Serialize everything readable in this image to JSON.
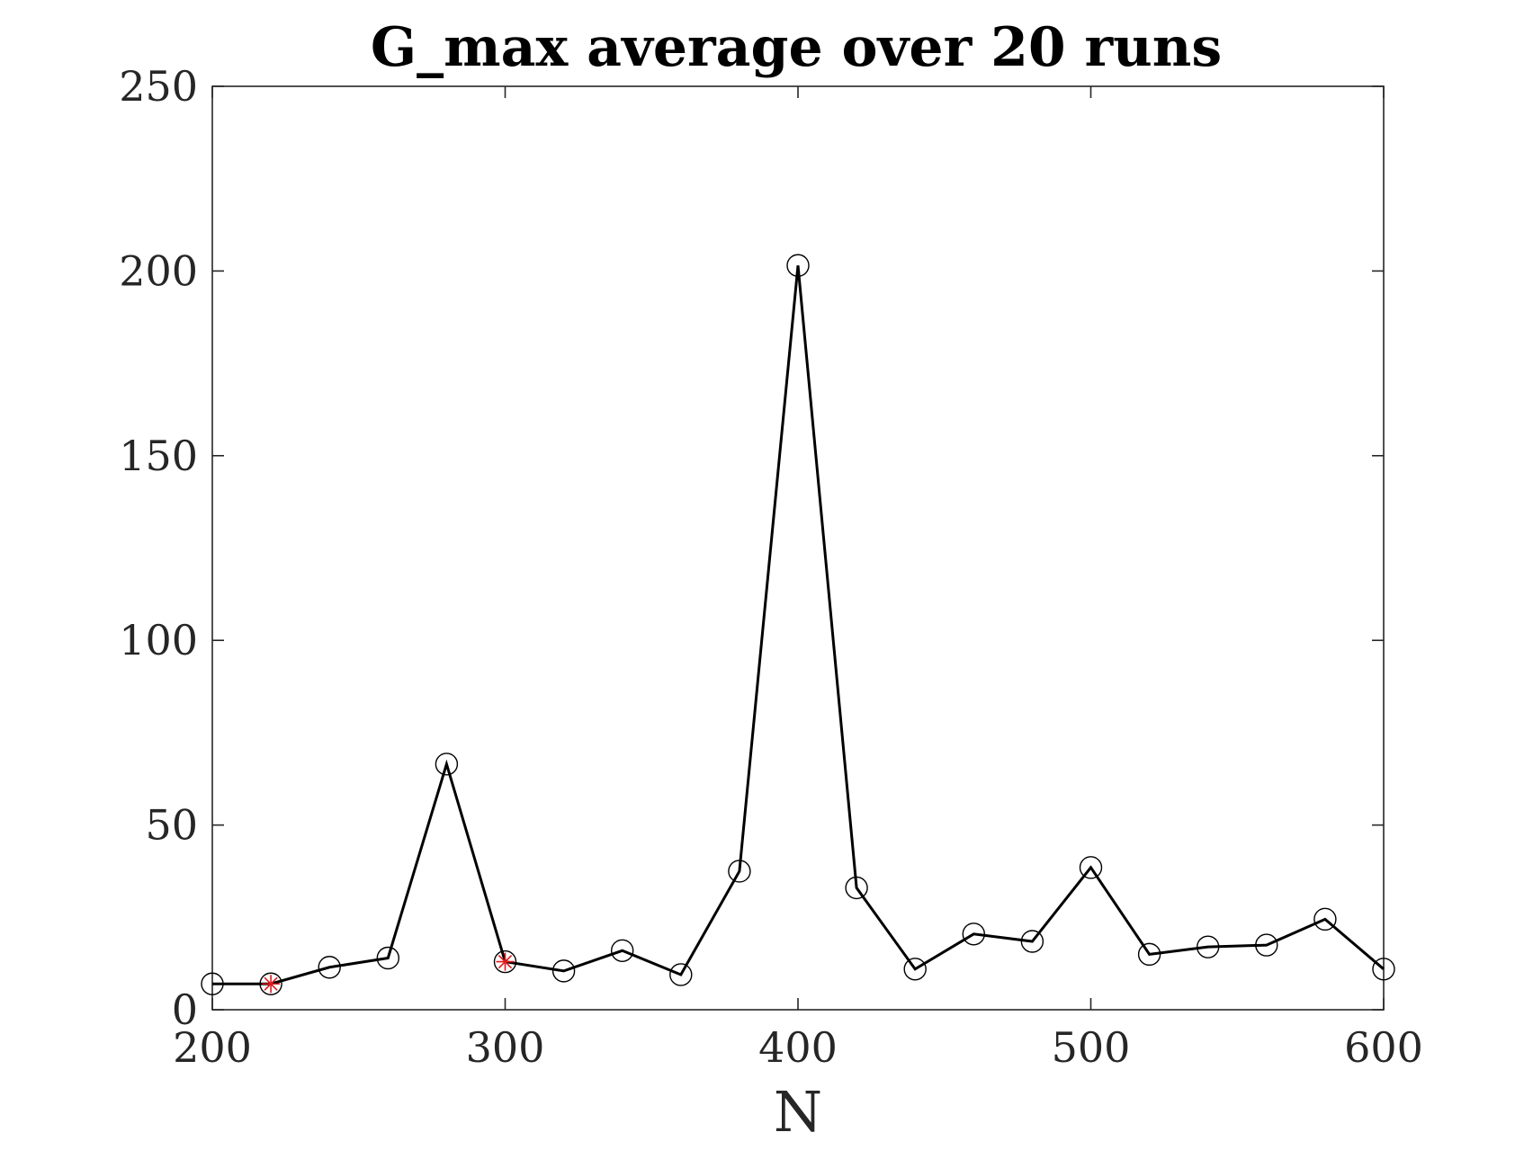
{
  "chart_data": {
    "type": "line",
    "title": "G_max average over 20 runs",
    "xlabel": "N",
    "ylabel": "",
    "xlim": [
      200,
      600
    ],
    "ylim": [
      0,
      250
    ],
    "xticks": [
      200,
      300,
      400,
      500,
      600
    ],
    "yticks": [
      0,
      50,
      100,
      150,
      200,
      250
    ],
    "x_tick_labels": [
      "200",
      "300",
      "400",
      "500",
      "600"
    ],
    "y_tick_labels": [
      "0",
      "50",
      "100",
      "150",
      "200",
      "250"
    ],
    "grid": false,
    "series": [
      {
        "line_color": "#000000",
        "marker": "open-circle",
        "x": [
          200,
          220,
          240,
          260,
          280,
          300,
          320,
          340,
          360,
          380,
          400,
          420,
          440,
          460,
          480,
          500,
          520,
          540,
          560,
          580,
          600
        ],
        "y": [
          7,
          7,
          11.5,
          14,
          66.5,
          13,
          10.5,
          16,
          9.5,
          37.5,
          201.5,
          33,
          11,
          20.5,
          18.5,
          38.5,
          15,
          17,
          17.5,
          24.5,
          11
        ]
      }
    ],
    "highlighted_points": {
      "marker": "red-asterisk",
      "color": "#e0181b",
      "x": [
        220,
        300
      ],
      "y": [
        7,
        13
      ]
    }
  }
}
